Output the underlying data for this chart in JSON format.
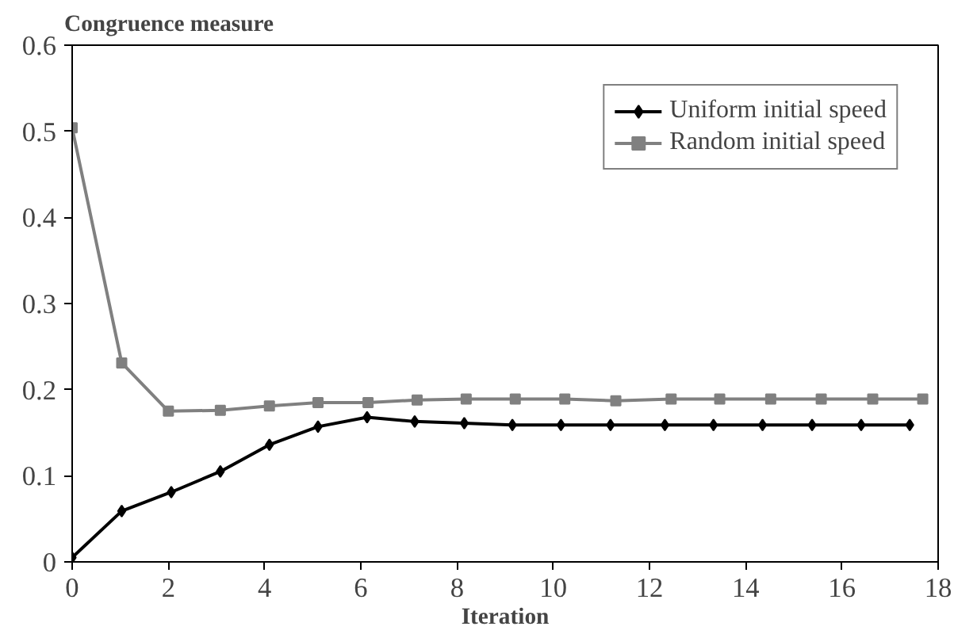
{
  "chart_data": {
    "type": "line",
    "ylabel": "Congruence measure",
    "xlabel": "Iteration",
    "xlim": [
      0,
      18
    ],
    "xticks": [
      0,
      2,
      4,
      6,
      8,
      10,
      12,
      14,
      16,
      18
    ],
    "ylim": [
      0,
      0.6
    ],
    "yticks": [
      0,
      0.1,
      0.2,
      0.3,
      0.4,
      0.5,
      0.6
    ],
    "grid": false,
    "legend": "top right",
    "line_style": "solid",
    "series": [
      {
        "name": "Uniform initial speed",
        "color": "#000000",
        "marker": "diamond",
        "x": [
          0,
          1.03,
          2.06,
          3.08,
          4.1,
          5.11,
          6.13,
          7.12,
          8.15,
          9.15,
          10.16,
          11.19,
          12.32,
          13.33,
          14.35,
          15.38,
          16.4,
          17.41
        ],
        "values": [
          0.005,
          0.059,
          0.081,
          0.105,
          0.136,
          0.157,
          0.168,
          0.163,
          0.161,
          0.159,
          0.159,
          0.159,
          0.159,
          0.159,
          0.159,
          0.159,
          0.159,
          0.159
        ]
      },
      {
        "name": "Random initial speed",
        "color": "#808080",
        "marker": "square",
        "x": [
          0,
          1.03,
          2.0,
          3.08,
          4.1,
          5.11,
          6.15,
          7.17,
          8.19,
          9.21,
          10.24,
          11.3,
          12.45,
          13.46,
          14.52,
          15.57,
          16.64,
          17.68
        ],
        "values": [
          0.504,
          0.231,
          0.175,
          0.176,
          0.181,
          0.185,
          0.185,
          0.188,
          0.189,
          0.189,
          0.189,
          0.187,
          0.189,
          0.189,
          0.189,
          0.189,
          0.189,
          0.189
        ]
      }
    ]
  }
}
